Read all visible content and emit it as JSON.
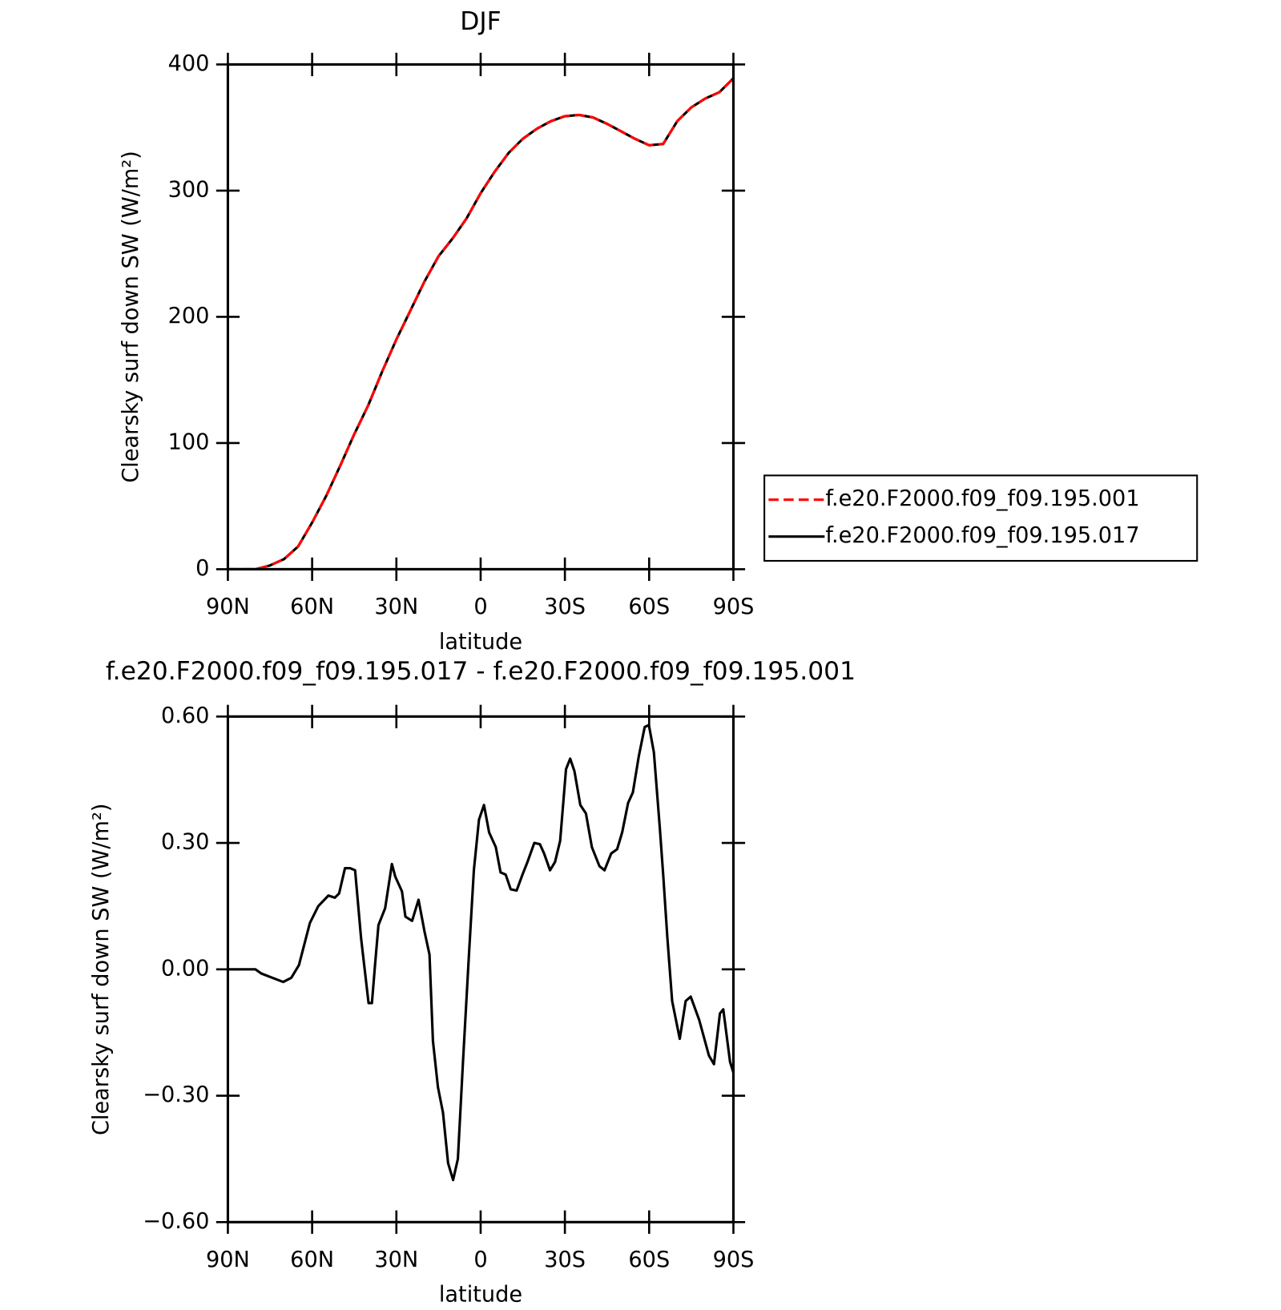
{
  "chart_data": [
    {
      "type": "line",
      "title": "DJF",
      "xlabel": "latitude",
      "ylabel": "Clearsky surf down SW (W/m²)",
      "x": [
        90,
        85,
        80,
        75,
        70,
        65,
        60,
        55,
        50,
        45,
        40,
        35,
        30,
        25,
        20,
        15,
        10,
        5,
        0,
        -5,
        -10,
        -15,
        -20,
        -25,
        -30,
        -35,
        -40,
        -45,
        -50,
        -55,
        -60,
        -65,
        -70,
        -75,
        -80,
        -85,
        -90
      ],
      "series": [
        {
          "name": "f.e20.F2000.f09_f09.195.017",
          "color": "#000000",
          "dash": false,
          "values": [
            0,
            0,
            0,
            3,
            8,
            18,
            37,
            58,
            82,
            107,
            130,
            157,
            182,
            205,
            228,
            248,
            262,
            278,
            298,
            315,
            330,
            341,
            349,
            355,
            359,
            360,
            358,
            353,
            347,
            341,
            336,
            337,
            355,
            366,
            373,
            378,
            389
          ]
        },
        {
          "name": "f.e20.F2000.f09_f09.195.001",
          "color": "#ff0000",
          "dash": true,
          "values": [
            0,
            0,
            0,
            3,
            8,
            18,
            37,
            58,
            82,
            107,
            130,
            157,
            182,
            205,
            228,
            248,
            262,
            278,
            298,
            315,
            330,
            341,
            349,
            355,
            359,
            360,
            358,
            353,
            347,
            341,
            336,
            337,
            355,
            366,
            373,
            378,
            389
          ]
        }
      ],
      "legend_order": [
        1,
        0
      ],
      "legend": "outside-right",
      "xlim": [
        90,
        -90
      ],
      "ylim": [
        0,
        400
      ],
      "xticks": [
        {
          "value": 90,
          "label": "90N"
        },
        {
          "value": 60,
          "label": "60N"
        },
        {
          "value": 30,
          "label": "30N"
        },
        0,
        {
          "value": -30,
          "label": "30S"
        },
        {
          "value": -60,
          "label": "60S"
        },
        {
          "value": -90,
          "label": "90S"
        }
      ],
      "yticks": [
        0,
        100,
        200,
        300,
        400
      ]
    },
    {
      "type": "line",
      "title": "f.e20.F2000.f09_f09.195.017 - f.e20.F2000.f09_f09.195.001",
      "xlabel": "latitude",
      "ylabel": "Clearsky surf down SW (W/m²)",
      "x": [
        90,
        80.2,
        78.1,
        74.2,
        70.3,
        67.4,
        64.7,
        60.8,
        57.8,
        54.2,
        51.9,
        50.4,
        48.3,
        46.5,
        44.7,
        42.6,
        39.9,
        38.7,
        37.6,
        36.4,
        34.0,
        31.6,
        30.4,
        28.0,
        26.8,
        24.4,
        22.1,
        20.0,
        18.2,
        17.0,
        15.2,
        13.4,
        11.6,
        9.8,
        8.1,
        6.3,
        4.2,
        2.4,
        0.6,
        -1.2,
        -3.0,
        -5.4,
        -7.1,
        -8.9,
        -10.7,
        -12.8,
        -14.9,
        -16.7,
        -19.1,
        -21.1,
        -22.6,
        -24.7,
        -26.5,
        -28.3,
        -30.4,
        -31.9,
        -33.4,
        -35.5,
        -37.5,
        -39.6,
        -42.3,
        -44.1,
        -46.5,
        -48.6,
        -50.4,
        -52.5,
        -54.2,
        -56.3,
        -58.4,
        -59.9,
        -61.7,
        -63.8,
        -65.0,
        -66.5,
        -68.2,
        -70.9,
        -73.0,
        -74.8,
        -77.8,
        -81.3,
        -83.1,
        -85.2,
        -86.4,
        -88.8,
        -90
      ],
      "series": [
        {
          "color": "#000000",
          "dash": false,
          "values": [
            0,
            0,
            -0.01,
            -0.02,
            -0.03,
            -0.02,
            0.01,
            0.11,
            0.15,
            0.175,
            0.17,
            0.18,
            0.24,
            0.24,
            0.235,
            0.075,
            -0.08,
            -0.08,
            0.01,
            0.105,
            0.145,
            0.25,
            0.22,
            0.185,
            0.125,
            0.115,
            0.165,
            0.09,
            0.035,
            -0.17,
            -0.28,
            -0.34,
            -0.46,
            -0.5,
            -0.45,
            -0.22,
            0.03,
            0.235,
            0.355,
            0.39,
            0.325,
            0.29,
            0.23,
            0.225,
            0.19,
            0.187,
            0.225,
            0.255,
            0.3,
            0.297,
            0.275,
            0.235,
            0.255,
            0.305,
            0.475,
            0.5,
            0.47,
            0.39,
            0.37,
            0.29,
            0.245,
            0.235,
            0.275,
            0.285,
            0.325,
            0.395,
            0.42,
            0.505,
            0.575,
            0.58,
            0.515,
            0.335,
            0.225,
            0.075,
            -0.075,
            -0.165,
            -0.075,
            -0.065,
            -0.12,
            -0.205,
            -0.225,
            -0.105,
            -0.095,
            -0.22,
            -0.245
          ]
        }
      ],
      "xlim": [
        90,
        -90
      ],
      "ylim": [
        -0.6,
        0.6
      ],
      "xticks": [
        {
          "value": 90,
          "label": "90N"
        },
        {
          "value": 60,
          "label": "60N"
        },
        {
          "value": 30,
          "label": "30N"
        },
        0,
        {
          "value": -30,
          "label": "30S"
        },
        {
          "value": -60,
          "label": "60S"
        },
        {
          "value": -90,
          "label": "90S"
        }
      ],
      "yticks": [
        {
          "value": -0.6,
          "label": "−0.60"
        },
        {
          "value": -0.3,
          "label": "−0.30"
        },
        {
          "value": 0,
          "label": "0.00"
        },
        {
          "value": 0.3,
          "label": "0.30"
        },
        {
          "value": 0.6,
          "label": "0.60"
        }
      ]
    }
  ]
}
